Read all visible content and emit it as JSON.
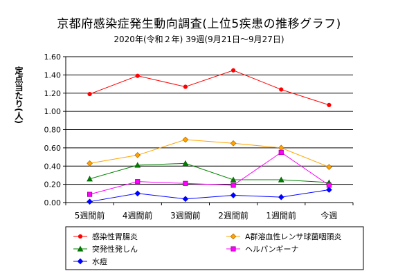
{
  "chart_data": {
    "type": "line",
    "title": "京都府感染症発生動向調査(上位5疾患の推移グラフ)",
    "subtitle": "2020年(令和２年) 39週(9月21日～9月27日)",
    "ylabel": "定点当たり(人)",
    "xlabel": "",
    "categories": [
      "5週間前",
      "4週間前",
      "3週間前",
      "2週間前",
      "1週間前",
      "今週"
    ],
    "ylim": [
      0,
      1.6
    ],
    "yticks": [
      0.0,
      0.2,
      0.4,
      0.6,
      0.8,
      1.0,
      1.2,
      1.4,
      1.6
    ],
    "ytick_labels": [
      "0.00",
      "0.20",
      "0.40",
      "0.60",
      "0.80",
      "1.00",
      "1.20",
      "1.40",
      "1.60"
    ],
    "grid": true,
    "legend_position": "bottom",
    "series": [
      {
        "name": "感染性胃腸炎",
        "values": [
          1.19,
          1.39,
          1.27,
          1.45,
          1.24,
          1.07
        ],
        "color": "#ff0000",
        "marker": "circle"
      },
      {
        "name": "A群溶血性レンサ球菌咽頭炎",
        "values": [
          0.43,
          0.52,
          0.69,
          0.65,
          0.6,
          0.39
        ],
        "color": "#ffa500",
        "marker": "diamond"
      },
      {
        "name": "突発性発しん",
        "values": [
          0.26,
          0.41,
          0.43,
          0.25,
          0.25,
          0.22
        ],
        "color": "#008000",
        "marker": "triangle"
      },
      {
        "name": "ヘルパンギーナ",
        "values": [
          0.09,
          0.23,
          0.21,
          0.19,
          0.55,
          0.19
        ],
        "color": "#ff00ff",
        "marker": "square"
      },
      {
        "name": "水痘",
        "values": [
          0.01,
          0.1,
          0.04,
          0.08,
          0.06,
          0.14
        ],
        "color": "#0000ff",
        "marker": "diamond"
      }
    ]
  }
}
